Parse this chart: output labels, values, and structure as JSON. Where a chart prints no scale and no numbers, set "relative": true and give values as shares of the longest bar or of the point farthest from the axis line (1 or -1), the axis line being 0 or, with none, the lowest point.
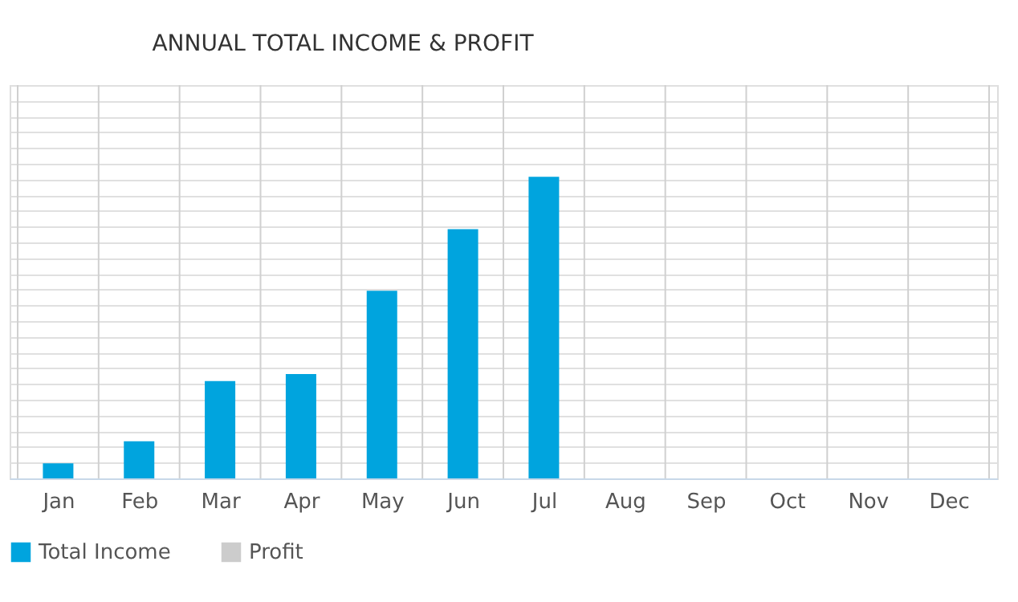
{
  "chart_data": {
    "type": "bar",
    "title": "ANNUAL TOTAL INCOME & PROFIT",
    "relative": true,
    "categories": [
      "Jan",
      "Feb",
      "Mar",
      "Apr",
      "May",
      "Jun",
      "Jul",
      "Aug",
      "Sep",
      "Oct",
      "Nov",
      "Dec"
    ],
    "series": [
      {
        "name": "Total Income",
        "color": "#00a4de",
        "values": [
          0.05,
          0.123,
          0.323,
          0.346,
          0.622,
          0.826,
          1,
          null,
          null,
          null,
          null,
          null
        ]
      },
      {
        "name": "Profit",
        "color": "#cccccc",
        "values": [
          null,
          null,
          null,
          null,
          null,
          null,
          null,
          null,
          null,
          null,
          null,
          null
        ]
      }
    ],
    "grid": true,
    "legend": "bottom"
  }
}
